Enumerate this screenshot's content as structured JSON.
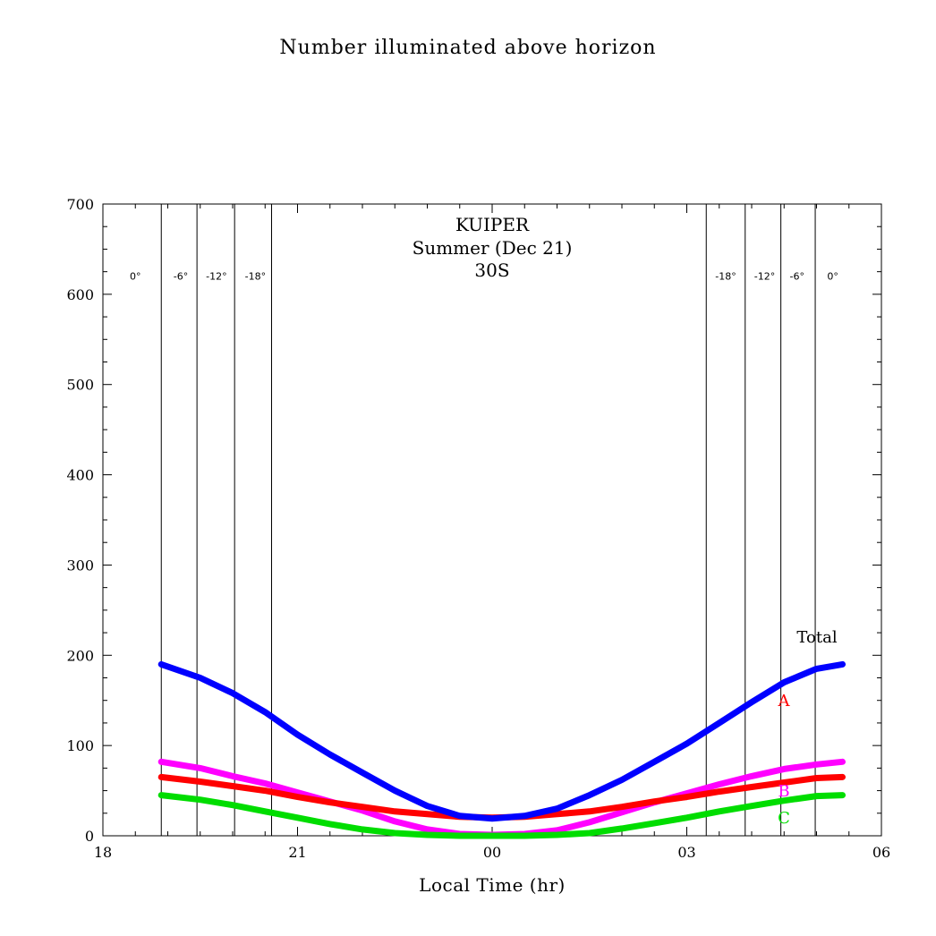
{
  "chart_data": {
    "type": "line",
    "title": "Number illuminated above horizon",
    "xlabel": "Local Time (hr)",
    "ylabel": "",
    "xlim": [
      18,
      30
    ],
    "ylim": [
      0,
      700
    ],
    "x_ticks": [
      {
        "value": 18,
        "label": "18"
      },
      {
        "value": 21,
        "label": "21"
      },
      {
        "value": 24,
        "label": "00"
      },
      {
        "value": 27,
        "label": "03"
      },
      {
        "value": 30,
        "label": "06"
      }
    ],
    "y_ticks": [
      {
        "value": 0,
        "label": "0"
      },
      {
        "value": 100,
        "label": "100"
      },
      {
        "value": 200,
        "label": "200"
      },
      {
        "value": 300,
        "label": "300"
      },
      {
        "value": 400,
        "label": "400"
      },
      {
        "value": 500,
        "label": "500"
      },
      {
        "value": 600,
        "label": "600"
      },
      {
        "value": 700,
        "label": "700"
      }
    ],
    "annotations": [
      "KUIPER",
      "Summer (Dec 21)",
      "30S"
    ],
    "grid": false,
    "twilight_lines": [
      {
        "x": 18.9,
        "label": "-6°"
      },
      {
        "x": 19.45,
        "label": "-12°"
      },
      {
        "x": 20.03,
        "label": "-18°"
      },
      {
        "x": 20.6,
        "label": ""
      },
      {
        "x": 27.3,
        "label": "-18°"
      },
      {
        "x": 27.9,
        "label": "-12°"
      },
      {
        "x": 28.45,
        "label": "-6°"
      },
      {
        "x": 28.98,
        "label": "0°"
      }
    ],
    "twilight_zone_labels": [
      {
        "x": 18.5,
        "label": "0°"
      },
      {
        "x": 19.2,
        "label": "-6°"
      },
      {
        "x": 19.75,
        "label": "-12°"
      },
      {
        "x": 20.35,
        "label": "-18°"
      },
      {
        "x": 27.6,
        "label": "-18°"
      },
      {
        "x": 28.2,
        "label": "-12°"
      },
      {
        "x": 28.7,
        "label": "-6°"
      },
      {
        "x": 29.25,
        "label": "0°"
      }
    ],
    "x": [
      18.9,
      19.5,
      20.0,
      20.5,
      21.0,
      21.5,
      22.0,
      22.5,
      23.0,
      23.5,
      24.0,
      24.5,
      25.0,
      25.5,
      26.0,
      26.5,
      27.0,
      27.5,
      28.0,
      28.5,
      29.0,
      29.4
    ],
    "series": [
      {
        "name": "Total",
        "color": "#0000ff",
        "values": [
          190,
          175,
          158,
          137,
          112,
          90,
          70,
          50,
          33,
          22,
          19,
          22,
          30,
          45,
          62,
          82,
          102,
          125,
          148,
          170,
          185,
          190
        ]
      },
      {
        "name": "A",
        "color": "#ff0000",
        "values": [
          65,
          60,
          55,
          50,
          43,
          37,
          32,
          27,
          24,
          21,
          20,
          21,
          24,
          27,
          32,
          38,
          43,
          49,
          54,
          59,
          64,
          65
        ]
      },
      {
        "name": "B",
        "color": "#ff00ff",
        "values": [
          82,
          75,
          66,
          58,
          48,
          38,
          28,
          16,
          7,
          2,
          1,
          2,
          6,
          15,
          26,
          37,
          47,
          57,
          66,
          74,
          79,
          82
        ]
      },
      {
        "name": "C",
        "color": "#00dd00",
        "values": [
          45,
          40,
          34,
          27,
          20,
          13,
          7,
          3,
          1,
          0,
          0,
          0,
          1,
          3,
          8,
          14,
          20,
          27,
          33,
          39,
          44,
          45
        ]
      }
    ]
  }
}
